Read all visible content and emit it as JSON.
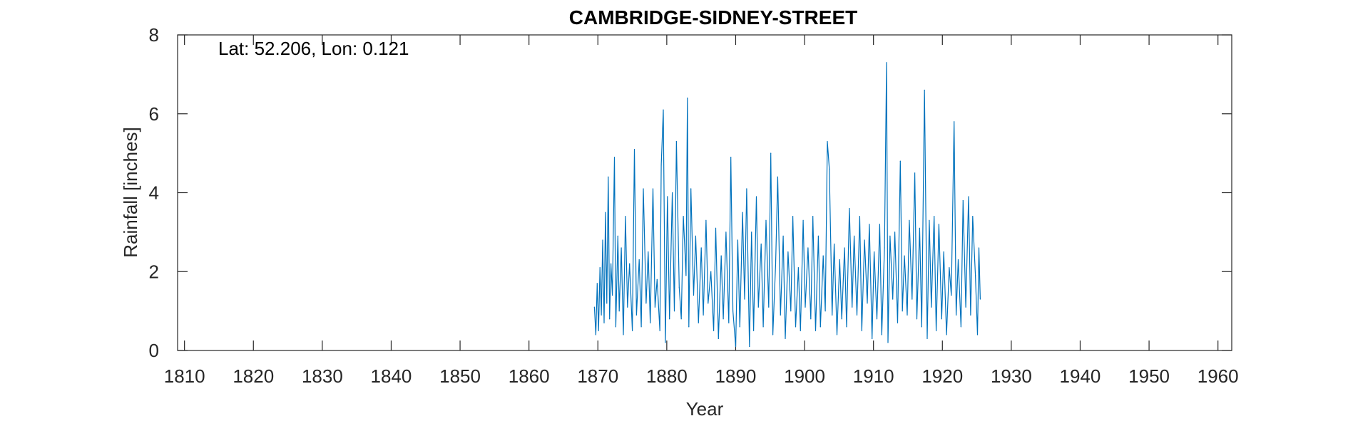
{
  "chart_data": {
    "type": "line",
    "title": "CAMBRIDGE-SIDNEY-STREET",
    "annotation": "Lat: 52.206, Lon: 0.121",
    "xlabel": "Year",
    "ylabel": "Rainfall [inches]",
    "xlim": [
      1809,
      1962
    ],
    "ylim": [
      0,
      8
    ],
    "xticks": [
      1810,
      1820,
      1830,
      1840,
      1850,
      1860,
      1870,
      1880,
      1890,
      1900,
      1910,
      1920,
      1930,
      1940,
      1950,
      1960
    ],
    "yticks": [
      0,
      2,
      4,
      6,
      8
    ],
    "grid": false,
    "line_color": "#0072BD",
    "series": [
      {
        "name": "",
        "x": [
          1869.5,
          1869.7,
          1869.9,
          1870.1,
          1870.3,
          1870.5,
          1870.7,
          1870.9,
          1871.1,
          1871.3,
          1871.5,
          1871.7,
          1871.9,
          1872.1,
          1872.4,
          1872.6,
          1872.9,
          1873.1,
          1873.4,
          1873.7,
          1874.0,
          1874.3,
          1874.6,
          1875.0,
          1875.3,
          1875.6,
          1876.0,
          1876.3,
          1876.6,
          1877.0,
          1877.3,
          1877.6,
          1878.0,
          1878.3,
          1878.6,
          1879.0,
          1879.2,
          1879.5,
          1879.8,
          1880.1,
          1880.4,
          1880.8,
          1881.1,
          1881.4,
          1881.8,
          1882.1,
          1882.4,
          1882.8,
          1883.0,
          1883.2,
          1883.5,
          1883.9,
          1884.2,
          1884.6,
          1885.0,
          1885.3,
          1885.7,
          1886.0,
          1886.4,
          1886.8,
          1887.1,
          1887.5,
          1887.9,
          1888.2,
          1888.6,
          1889.0,
          1889.3,
          1889.6,
          1890.0,
          1890.3,
          1890.6,
          1891.0,
          1891.3,
          1891.6,
          1892.0,
          1892.3,
          1892.6,
          1893.0,
          1893.3,
          1893.7,
          1894.0,
          1894.4,
          1894.8,
          1895.1,
          1895.4,
          1895.8,
          1896.1,
          1896.5,
          1896.9,
          1897.2,
          1897.6,
          1898.0,
          1898.3,
          1898.7,
          1899.1,
          1899.4,
          1899.8,
          1900.1,
          1900.5,
          1900.9,
          1901.2,
          1901.6,
          1902.0,
          1902.3,
          1902.7,
          1903.0,
          1903.3,
          1903.6,
          1904.0,
          1904.3,
          1904.7,
          1905.1,
          1905.4,
          1905.8,
          1906.1,
          1906.5,
          1906.9,
          1907.2,
          1907.6,
          1908.0,
          1908.3,
          1908.7,
          1909.1,
          1909.4,
          1909.8,
          1910.1,
          1910.5,
          1910.9,
          1911.2,
          1911.6,
          1911.9,
          1912.1,
          1912.4,
          1912.8,
          1913.1,
          1913.5,
          1913.9,
          1914.2,
          1914.5,
          1914.9,
          1915.2,
          1915.6,
          1916.0,
          1916.3,
          1916.7,
          1917.0,
          1917.4,
          1917.8,
          1918.1,
          1918.4,
          1918.8,
          1919.1,
          1919.5,
          1919.9,
          1920.2,
          1920.6,
          1921.0,
          1921.3,
          1921.7,
          1922.0,
          1922.3,
          1922.7,
          1923.0,
          1923.4,
          1923.8,
          1924.1,
          1924.4,
          1924.8,
          1925.1,
          1925.3,
          1925.5
        ],
        "values": [
          1.1,
          0.4,
          1.7,
          0.5,
          2.1,
          0.9,
          2.8,
          0.7,
          3.5,
          1.2,
          4.4,
          0.8,
          2.2,
          1.4,
          4.9,
          0.6,
          2.9,
          1.0,
          2.6,
          0.4,
          3.4,
          1.1,
          2.2,
          0.5,
          5.1,
          0.9,
          2.3,
          0.6,
          4.1,
          1.2,
          2.5,
          0.7,
          4.1,
          1.1,
          1.8,
          0.5,
          4.7,
          6.1,
          0.2,
          3.9,
          0.8,
          4.0,
          1.0,
          5.3,
          1.6,
          0.8,
          3.4,
          1.9,
          6.4,
          0.6,
          4.1,
          1.4,
          2.9,
          0.7,
          2.6,
          0.9,
          3.3,
          1.2,
          2.0,
          0.5,
          3.1,
          0.3,
          2.4,
          0.8,
          3.0,
          0.7,
          4.9,
          1.0,
          0.1,
          2.8,
          0.6,
          3.5,
          1.3,
          4.1,
          0.1,
          3.0,
          0.5,
          3.9,
          1.1,
          2.7,
          0.6,
          3.3,
          1.1,
          5.0,
          0.4,
          2.2,
          4.4,
          0.9,
          2.9,
          0.3,
          2.5,
          1.0,
          3.4,
          0.6,
          2.1,
          0.5,
          3.3,
          1.1,
          2.6,
          0.8,
          3.4,
          0.5,
          2.9,
          0.6,
          2.4,
          1.0,
          5.3,
          4.6,
          0.9,
          2.7,
          0.4,
          2.3,
          0.8,
          2.6,
          0.6,
          3.6,
          1.1,
          2.9,
          0.9,
          3.4,
          0.5,
          2.8,
          1.2,
          3.2,
          0.3,
          2.5,
          0.8,
          3.2,
          0.4,
          2.6,
          7.3,
          0.2,
          2.9,
          1.3,
          3.0,
          0.7,
          4.8,
          1.0,
          2.4,
          0.9,
          3.3,
          1.3,
          4.5,
          0.8,
          3.1,
          0.6,
          6.6,
          0.3,
          3.3,
          1.1,
          3.4,
          0.5,
          3.2,
          0.8,
          2.5,
          0.4,
          2.1,
          1.4,
          5.8,
          0.9,
          2.3,
          0.6,
          3.8,
          1.1,
          3.9,
          0.9,
          3.4,
          1.9,
          0.4,
          2.6,
          1.3
        ]
      }
    ]
  }
}
